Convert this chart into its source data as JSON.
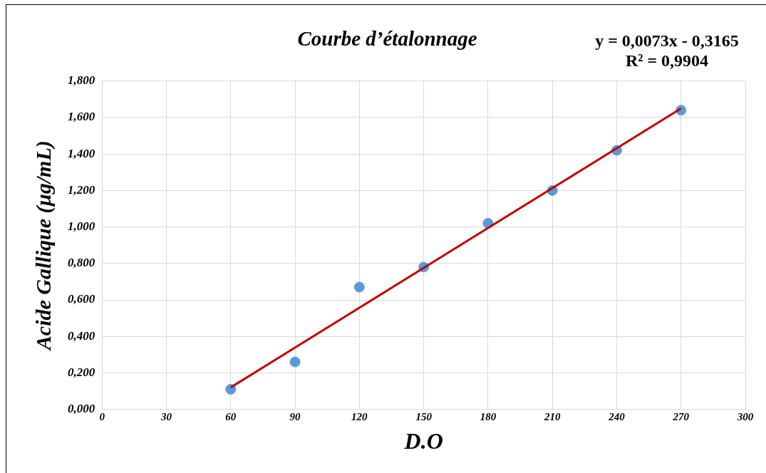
{
  "chart_data": {
    "type": "scatter",
    "title": "Courbe d’étalonnage",
    "xlabel": "D.O",
    "ylabel": "Acide Gallique (µg/mL)",
    "annotations": [
      "y = 0,0073x - 0,3165",
      "R² = 0,9904"
    ],
    "series": [
      {
        "color": "#5b9bd5",
        "x": [
          60,
          90,
          120,
          150,
          180,
          210,
          240,
          270
        ],
        "values": [
          0.11,
          0.26,
          0.67,
          0.78,
          1.02,
          1.2,
          1.42,
          1.64
        ]
      },
      {
        "type": "line",
        "marker": "none",
        "color": "#c00000",
        "x": [
          60,
          270
        ],
        "values": [
          0.12,
          1.65
        ]
      }
    ],
    "xlim": [
      0,
      300
    ],
    "xticks": [
      0,
      30,
      60,
      90,
      120,
      150,
      180,
      210,
      240,
      270,
      300
    ],
    "ylim": [
      0,
      1.8
    ],
    "yticks": [
      {
        "value": 0,
        "label": "0,000"
      },
      {
        "value": 0.2,
        "label": "0,200"
      },
      {
        "value": 0.4,
        "label": "0,400"
      },
      {
        "value": 0.6,
        "label": "0,600"
      },
      {
        "value": 0.8,
        "label": "0,800"
      },
      {
        "value": 1,
        "label": "1,000"
      },
      {
        "value": 1.2,
        "label": "1,200"
      },
      {
        "value": 1.4,
        "label": "1,400"
      },
      {
        "value": 1.6,
        "label": "1,600"
      },
      {
        "value": 1.8,
        "label": "1,800"
      }
    ],
    "grid": true,
    "legend": false,
    "marker": "circle",
    "line_style": "solid"
  }
}
